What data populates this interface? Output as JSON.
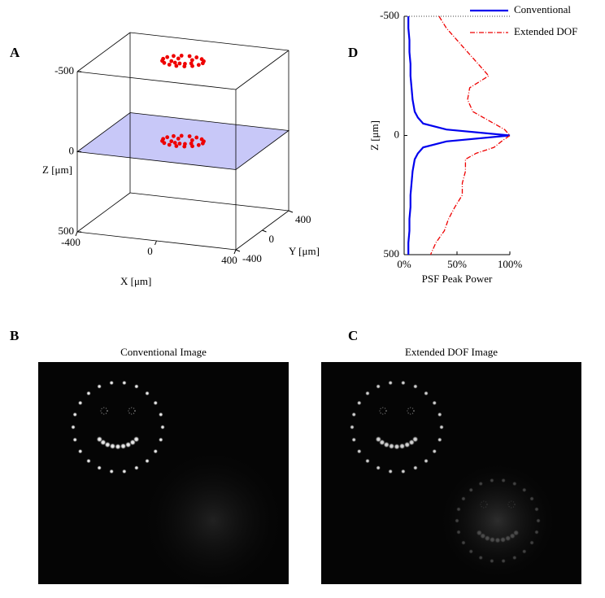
{
  "chart_data": [
    {
      "type": "scatter3d",
      "panel_label": "A",
      "xlabel": "X [μm]",
      "ylabel": "Y [μm]",
      "zlabel": "Z [μm]",
      "xlim": [
        -400,
        400
      ],
      "ylim": [
        -400,
        400
      ],
      "zlim": [
        -500,
        500
      ],
      "xticks": [
        -400,
        0,
        400
      ],
      "yticks": [
        -400,
        0,
        400
      ],
      "zticks": [
        -500,
        0,
        500
      ],
      "plane": {
        "z": 0,
        "color": "#c8c8f8"
      },
      "series": [
        {
          "color": "#ee0000",
          "x": [
            100,
            92,
            71,
            38,
            0,
            -38,
            -71,
            -92,
            -100,
            -92,
            -71,
            -38,
            0,
            38,
            71,
            92,
            -35,
            35,
            -50,
            -25,
            0,
            25,
            50,
            100,
            92,
            71,
            38,
            0,
            -38,
            -71,
            -92,
            -100,
            -92,
            -71,
            -38,
            0,
            38,
            71,
            92,
            -35,
            35,
            -50,
            -25,
            0,
            25,
            50
          ],
          "y": [
            0,
            38,
            71,
            92,
            100,
            92,
            71,
            38,
            0,
            -38,
            -71,
            -92,
            -100,
            -92,
            -71,
            -38,
            35,
            35,
            -25,
            -45,
            -50,
            -45,
            -25,
            0,
            38,
            71,
            92,
            100,
            92,
            71,
            38,
            0,
            -38,
            -71,
            -92,
            -100,
            -92,
            -71,
            -38,
            35,
            35,
            -25,
            -45,
            -50,
            -45,
            -25
          ],
          "z": [
            -500,
            -500,
            -500,
            -500,
            -500,
            -500,
            -500,
            -500,
            -500,
            -500,
            -500,
            -500,
            -500,
            -500,
            -500,
            -500,
            -500,
            -500,
            -500,
            -500,
            -500,
            -500,
            -500,
            0,
            0,
            0,
            0,
            0,
            0,
            0,
            0,
            0,
            0,
            0,
            0,
            0,
            0,
            0,
            0,
            0,
            0,
            0,
            0,
            0,
            0,
            0
          ]
        }
      ]
    },
    {
      "type": "line",
      "panel_label": "D",
      "xlabel": "Z [μm]",
      "ylabel": "PSF Peak Power",
      "x": [
        -500,
        -450,
        -400,
        -350,
        -300,
        -250,
        -200,
        -150,
        -100,
        -75,
        -50,
        -25,
        0,
        25,
        50,
        75,
        100,
        150,
        200,
        250,
        300,
        350,
        400,
        450,
        500
      ],
      "xlim": [
        -500,
        500
      ],
      "xticks": [
        -500,
        0,
        500
      ],
      "ylim": [
        0,
        100
      ],
      "yticks": [
        {
          "value": 0,
          "label": "0%"
        },
        {
          "value": 50,
          "label": "50%"
        },
        {
          "value": 100,
          "label": "100%"
        }
      ],
      "legend": "top-right",
      "series": [
        {
          "name": "Conventional",
          "color": "#0000ee",
          "dash": "solid",
          "values": [
            4,
            4,
            5,
            5,
            6,
            6,
            7,
            8,
            10,
            13,
            18,
            40,
            100,
            40,
            18,
            13,
            10,
            8,
            7,
            6,
            6,
            5,
            5,
            4,
            4
          ]
        },
        {
          "name": "Extended DOF",
          "color": "#ee0000",
          "dash": "dashdot",
          "values": [
            33,
            40,
            50,
            60,
            70,
            80,
            62,
            60,
            65,
            75,
            85,
            95,
            100,
            92,
            85,
            68,
            58,
            58,
            55,
            55,
            48,
            42,
            38,
            30,
            25
          ]
        }
      ]
    }
  ],
  "images": [
    {
      "panel_label": "B",
      "title": "Conventional Image"
    },
    {
      "panel_label": "C",
      "title": "Extended DOF Image"
    }
  ]
}
